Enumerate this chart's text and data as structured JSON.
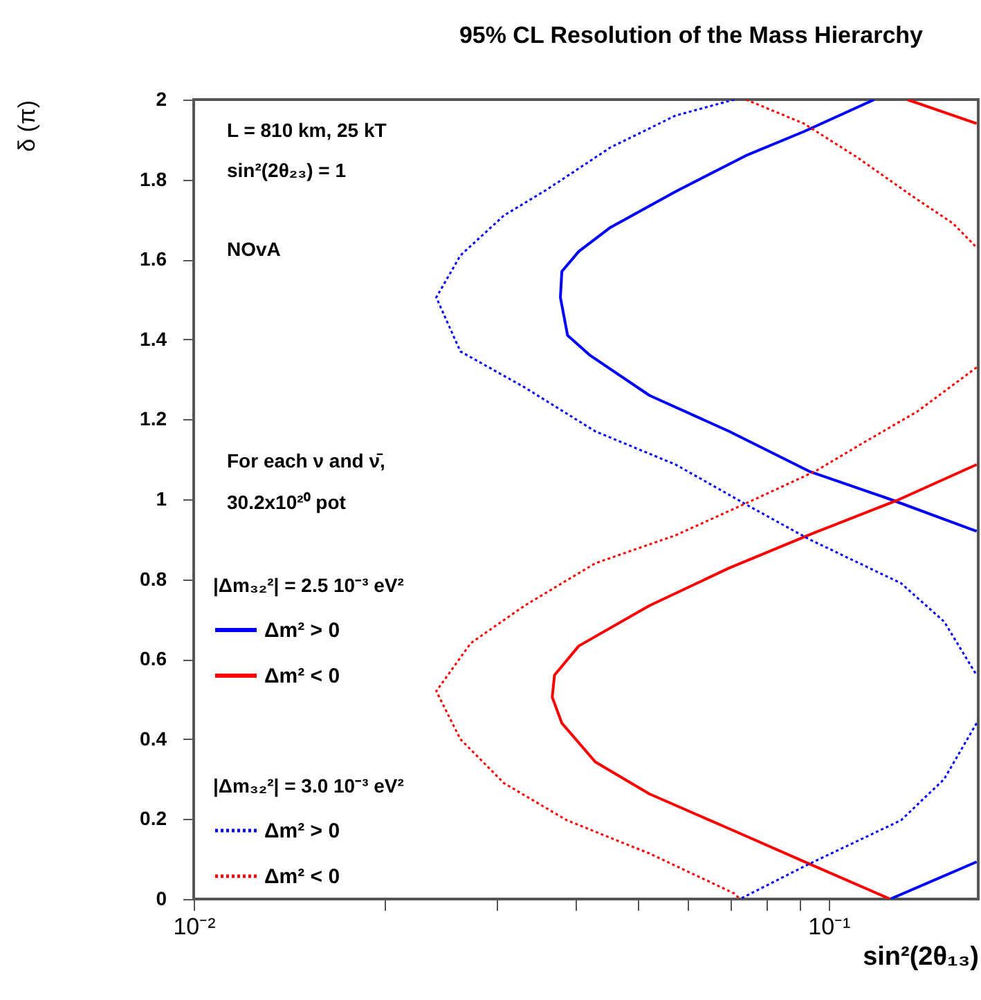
{
  "chart_data": {
    "type": "line",
    "title": "95% CL  Resolution of the Mass Hierarchy",
    "xlabel": "sin²(2θ₁₃)",
    "ylabel": "δ (π)",
    "log": "x",
    "xlim": [
      0.01,
      0.172
    ],
    "ylim": [
      0,
      2
    ],
    "xticks": [
      {
        "value": 0.01,
        "label": "10⁻²"
      },
      {
        "value": 0.02,
        "label": null
      },
      {
        "value": 0.03,
        "label": null
      },
      {
        "value": 0.04,
        "label": null
      },
      {
        "value": 0.05,
        "label": null
      },
      {
        "value": 0.06,
        "label": null
      },
      {
        "value": 0.07,
        "label": null
      },
      {
        "value": 0.08,
        "label": null
      },
      {
        "value": 0.09,
        "label": null
      },
      {
        "value": 0.1,
        "label": "10⁻¹"
      }
    ],
    "yticks": [
      0,
      0.2,
      0.4,
      0.6,
      0.8,
      1,
      1.2,
      1.4,
      1.6,
      1.8,
      2
    ],
    "grid": false,
    "legend": "bottom left",
    "annotations": [
      "L = 810 km, 25 kT",
      "sin²(2θ₂₃) = 1",
      "NOvA",
      "For each ν and ν̄,",
      "30.2x10²⁰ pot",
      "|Δm₃₂²| = 2.5 10⁻³ eV²",
      "|Δm₃₂²| = 3.0 10⁻³ eV²"
    ],
    "series": [
      {
        "name": "Δm² > 0",
        "color": "#0000ff",
        "line_style": "solid",
        "x": [
          0.118,
          0.0914,
          0.0741,
          0.0574,
          0.0453,
          0.0404,
          0.038,
          0.0378,
          0.0388,
          0.0421,
          0.0522,
          0.0697,
          0.0932,
          0.125,
          0.171,
          null,
          0.125,
          0.171
        ],
        "values": [
          2,
          1.92,
          1.86,
          1.77,
          1.68,
          1.62,
          1.57,
          1.505,
          1.41,
          1.36,
          1.26,
          1.17,
          1.07,
          1.0,
          0.92,
          null,
          0,
          0.093
        ]
      },
      {
        "name": "Δm² < 0",
        "color": "#ff0000",
        "line_style": "solid",
        "x": [
          0.133,
          0.171,
          null,
          0.171,
          0.128,
          0.0952,
          0.0697,
          0.0522,
          0.0404,
          0.037,
          0.0367,
          0.038,
          0.0429,
          0.0522,
          0.0697,
          0.0932,
          0.125
        ],
        "values": [
          2,
          1.94,
          null,
          1.087,
          0.997,
          0.917,
          0.828,
          0.734,
          0.633,
          0.56,
          0.505,
          0.44,
          0.343,
          0.263,
          0.176,
          0.088,
          0
        ]
      },
      {
        "name": "Δm² > 0",
        "color": "#0000ff",
        "line_style": "dotted",
        "x": [
          0.071,
          0.0574,
          0.0453,
          0.036,
          0.0308,
          0.0263,
          0.0241,
          0.0263,
          0.0332,
          0.0429,
          0.0574,
          0.0755,
          0.0932,
          0.13,
          0.152,
          0.171,
          null,
          0.171,
          0.152,
          0.13,
          0.0932,
          0.0725
        ],
        "values": [
          2,
          1.96,
          1.88,
          1.775,
          1.71,
          1.61,
          1.505,
          1.37,
          1.28,
          1.17,
          1.087,
          0.98,
          0.9,
          0.79,
          0.694,
          0.56,
          null,
          0.44,
          0.3,
          0.197,
          0.088,
          0
        ]
      },
      {
        "name": "Δm² < 0",
        "color": "#ff0000",
        "line_style": "dotted",
        "x": [
          0.0741,
          0.0914,
          0.111,
          0.135,
          0.157,
          0.171,
          null,
          0.171,
          0.138,
          0.113,
          0.0952,
          0.0741,
          0.0574,
          0.0429,
          0.0332,
          0.0273,
          0.0241,
          0.0263,
          0.0308,
          0.0387,
          0.0522,
          0.071,
          0.0725
        ],
        "values": [
          2,
          1.94,
          1.855,
          1.76,
          1.69,
          1.63,
          null,
          1.33,
          1.22,
          1.14,
          1.07,
          0.99,
          0.91,
          0.84,
          0.734,
          0.64,
          0.52,
          0.4,
          0.29,
          0.197,
          0.114,
          0.014,
          0
        ]
      }
    ]
  }
}
